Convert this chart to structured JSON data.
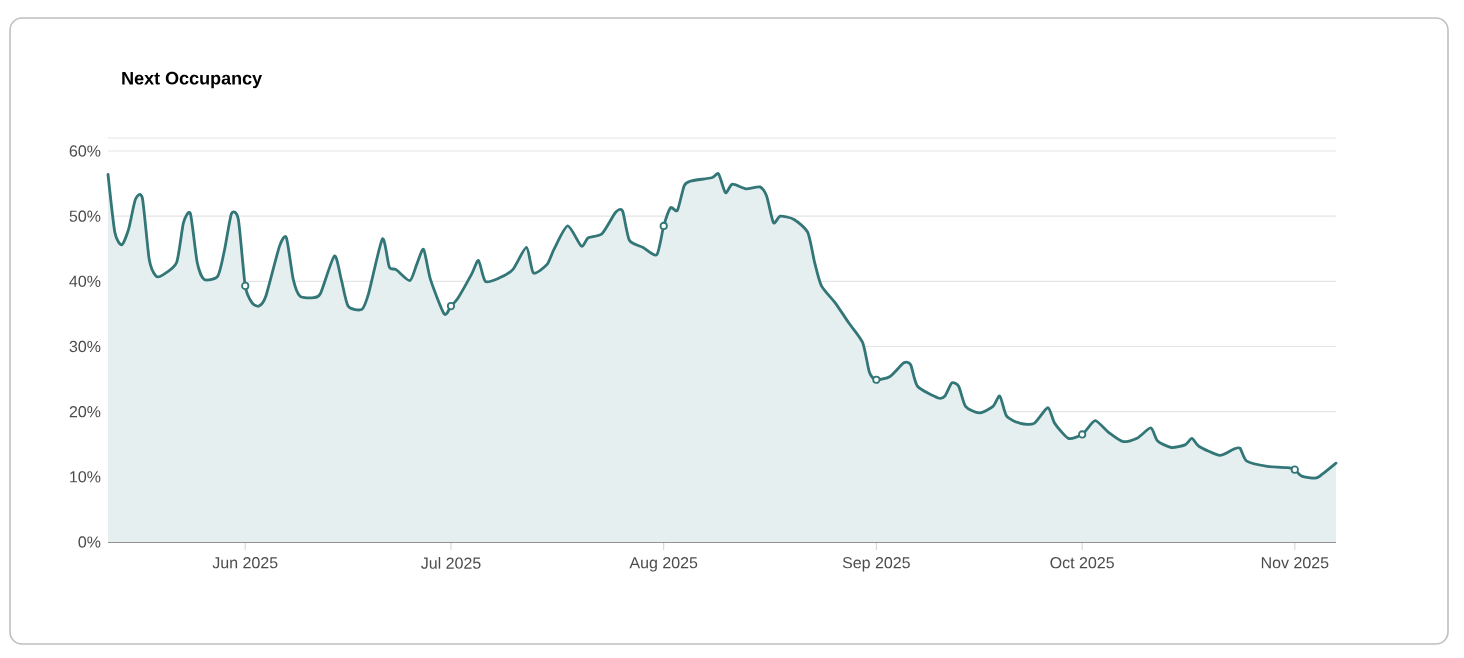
{
  "chart_data": {
    "type": "area",
    "title": "Next Occupancy",
    "xlim": [
      "2025-05-12",
      "2025-11-07"
    ],
    "xticks": [
      {
        "value": "2025-06-01",
        "label": "Jun 2025"
      },
      {
        "value": "2025-07-01",
        "label": "Jul 2025"
      },
      {
        "value": "2025-08-01",
        "label": "Aug 2025"
      },
      {
        "value": "2025-09-01",
        "label": "Sep 2025"
      },
      {
        "value": "2025-10-01",
        "label": "Oct 2025"
      },
      {
        "value": "2025-11-01",
        "label": "Nov 2025"
      }
    ],
    "ylim": [
      0,
      62
    ],
    "yticks": [
      {
        "value": 0,
        "label": "0%"
      },
      {
        "value": 10,
        "label": "10%"
      },
      {
        "value": 20,
        "label": "20%"
      },
      {
        "value": 30,
        "label": "30%"
      },
      {
        "value": 40,
        "label": "40%"
      },
      {
        "value": 50,
        "label": "50%"
      },
      {
        "value": 60,
        "label": "60%"
      }
    ],
    "grid": "y",
    "line_style": "solid",
    "series": [
      {
        "color": "#327677",
        "x": [
          "2025-05-12",
          "2025-05-13",
          "2025-05-14",
          "2025-05-15",
          "2025-05-16",
          "2025-05-17",
          "2025-05-18",
          "2025-05-19",
          "2025-05-20",
          "2025-05-22",
          "2025-05-23",
          "2025-05-24",
          "2025-05-25",
          "2025-05-26",
          "2025-05-28",
          "2025-05-29",
          "2025-05-30",
          "2025-05-31",
          "2025-06-01",
          "2025-06-02",
          "2025-06-03",
          "2025-06-04",
          "2025-06-06",
          "2025-06-07",
          "2025-06-08",
          "2025-06-09",
          "2025-06-11",
          "2025-06-12",
          "2025-06-14",
          "2025-06-15",
          "2025-06-16",
          "2025-06-18",
          "2025-06-19",
          "2025-06-21",
          "2025-06-22",
          "2025-06-23",
          "2025-06-25",
          "2025-06-26",
          "2025-06-27",
          "2025-06-28",
          "2025-06-30",
          "2025-07-01",
          "2025-07-02",
          "2025-07-04",
          "2025-07-05",
          "2025-07-06",
          "2025-07-08",
          "2025-07-10",
          "2025-07-12",
          "2025-07-13",
          "2025-07-15",
          "2025-07-16",
          "2025-07-18",
          "2025-07-20",
          "2025-07-21",
          "2025-07-23",
          "2025-07-25",
          "2025-07-26",
          "2025-07-27",
          "2025-07-29",
          "2025-07-31",
          "2025-08-01",
          "2025-08-02",
          "2025-08-03",
          "2025-08-04",
          "2025-08-05",
          "2025-08-08",
          "2025-08-09",
          "2025-08-10",
          "2025-08-11",
          "2025-08-13",
          "2025-08-15",
          "2025-08-16",
          "2025-08-17",
          "2025-08-18",
          "2025-08-20",
          "2025-08-22",
          "2025-08-23",
          "2025-08-24",
          "2025-08-26",
          "2025-08-28",
          "2025-08-30",
          "2025-08-31",
          "2025-09-01",
          "2025-09-03",
          "2025-09-05",
          "2025-09-06",
          "2025-09-07",
          "2025-09-10",
          "2025-09-11",
          "2025-09-12",
          "2025-09-13",
          "2025-09-14",
          "2025-09-16",
          "2025-09-18",
          "2025-09-19",
          "2025-09-20",
          "2025-09-22",
          "2025-09-24",
          "2025-09-26",
          "2025-09-27",
          "2025-09-29",
          "2025-10-01",
          "2025-10-02",
          "2025-10-03",
          "2025-10-05",
          "2025-10-07",
          "2025-10-09",
          "2025-10-11",
          "2025-10-12",
          "2025-10-14",
          "2025-10-16",
          "2025-10-17",
          "2025-10-18",
          "2025-10-21",
          "2025-10-23",
          "2025-10-24",
          "2025-10-25",
          "2025-10-28",
          "2025-10-31",
          "2025-11-01",
          "2025-11-02",
          "2025-11-04",
          "2025-11-05",
          "2025-11-07"
        ],
        "values": [
          56.4,
          47.5,
          45.6,
          48,
          52.6,
          52.8,
          43.4,
          40.8,
          41,
          42.9,
          49,
          50.4,
          42.9,
          40.3,
          40.8,
          44.9,
          50.4,
          49.5,
          39.3,
          36.7,
          36.2,
          37.7,
          45.4,
          46.7,
          40.3,
          37.7,
          37.5,
          38.2,
          43.9,
          40.3,
          36.2,
          35.7,
          38.2,
          46.5,
          42.2,
          41.8,
          40.1,
          42.6,
          44.9,
          40.3,
          35,
          36.2,
          37.4,
          41.1,
          43.2,
          40,
          40.5,
          41.8,
          45.2,
          41.3,
          42.6,
          44.9,
          48.5,
          45.4,
          46.7,
          47.3,
          50.6,
          50.8,
          46.3,
          45.2,
          44.1,
          48.5,
          51.3,
          50.9,
          54.7,
          55.4,
          55.9,
          56.5,
          53.6,
          54.9,
          54.2,
          54.5,
          53.1,
          49,
          50,
          49.5,
          47.5,
          42.9,
          39.3,
          36.7,
          33.6,
          30.6,
          26,
          24.9,
          25.4,
          27.5,
          27.2,
          23.9,
          22.1,
          22.4,
          24.4,
          23.9,
          20.8,
          19.8,
          20.8,
          22.4,
          19.3,
          18.2,
          18.2,
          20.6,
          18.2,
          15.9,
          16.5,
          17.7,
          18.6,
          16.7,
          15.4,
          15.9,
          17.5,
          15.5,
          14.5,
          14.9,
          15.9,
          14.7,
          13.3,
          14.2,
          14.4,
          12.4,
          11.6,
          11.4,
          11.1,
          10.1,
          9.8,
          10.4,
          12.1
        ]
      },
      {
        "type": "scatter",
        "color": "#327677",
        "marker": "circle",
        "x": [
          "2025-06-01",
          "2025-07-01",
          "2025-08-01",
          "2025-09-01",
          "2025-10-01",
          "2025-11-01"
        ],
        "values": [
          39.3,
          36.2,
          48.5,
          24.9,
          16.5,
          11.1
        ]
      }
    ]
  }
}
